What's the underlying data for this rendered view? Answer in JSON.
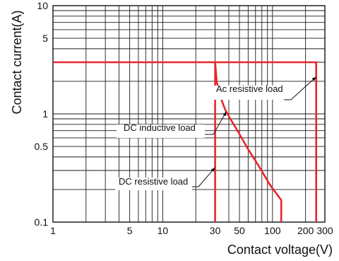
{
  "chart_data": {
    "type": "line",
    "title": "",
    "xlabel": "Contact voltage(V)",
    "ylabel": "Contact current(A)",
    "xscale": "log",
    "yscale": "log",
    "xlim": [
      1,
      300
    ],
    "ylim": [
      0.1,
      10
    ],
    "grid": true,
    "x_ticks": [
      {
        "v": 1,
        "label": "1"
      },
      {
        "v": 5,
        "label": "5"
      },
      {
        "v": 10,
        "label": "10"
      },
      {
        "v": 30,
        "label": "30"
      },
      {
        "v": 50,
        "label": "50"
      },
      {
        "v": 100,
        "label": "100"
      },
      {
        "v": 200,
        "label": "200"
      },
      {
        "v": 300,
        "label": "300"
      }
    ],
    "y_ticks": [
      {
        "v": 0.1,
        "label": "0.1"
      },
      {
        "v": 0.5,
        "label": "0.5"
      },
      {
        "v": 1,
        "label": "1"
      },
      {
        "v": 5,
        "label": "5"
      },
      {
        "v": 10,
        "label": "10"
      }
    ],
    "series": [
      {
        "name": "DC resistive load",
        "color": "#e8262b",
        "points": [
          [
            1,
            3
          ],
          [
            30,
            3
          ],
          [
            30,
            0.1
          ]
        ]
      },
      {
        "name": "DC inductive load",
        "color": "#e8262b",
        "points": [
          [
            30,
            3
          ],
          [
            31,
            2.0
          ],
          [
            33,
            1.5
          ],
          [
            37,
            1.1
          ],
          [
            40,
            0.95
          ],
          [
            50,
            0.65
          ],
          [
            60,
            0.47
          ],
          [
            75,
            0.33
          ],
          [
            95,
            0.22
          ],
          [
            120,
            0.16
          ],
          [
            120,
            0.1
          ]
        ]
      },
      {
        "name": "Ac resistive load",
        "color": "#e8262b",
        "points": [
          [
            30,
            3
          ],
          [
            250,
            3
          ],
          [
            250,
            0.1
          ]
        ]
      }
    ],
    "annotations": [
      {
        "text": "Ac resistive load",
        "at": [
          250,
          2.2
        ]
      },
      {
        "text": "DC inductive load",
        "at": [
          38,
          1.05
        ]
      },
      {
        "text": "DC resistive load",
        "at": [
          30,
          0.32
        ]
      }
    ]
  }
}
